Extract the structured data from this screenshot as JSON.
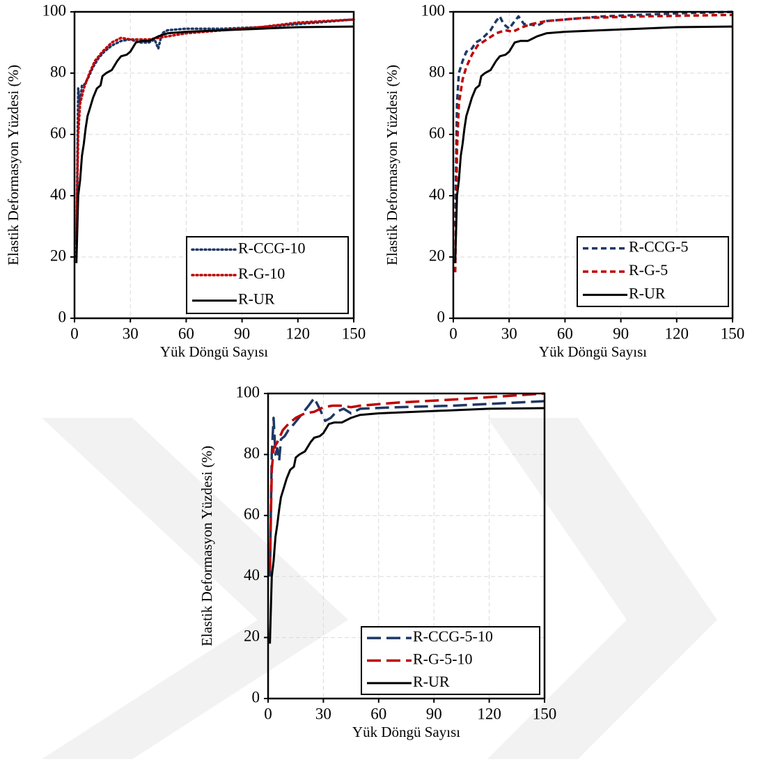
{
  "chart_data": [
    {
      "type": "line",
      "xlabel": "Yük Döngü Sayısı",
      "ylabel": "Elastik Deformasyon Yüzdesi (%)",
      "xlim": [
        0,
        150
      ],
      "ylim": [
        0,
        100
      ],
      "xticks": [
        0,
        30,
        60,
        90,
        120,
        150
      ],
      "yticks": [
        0,
        20,
        40,
        60,
        80,
        100
      ],
      "grid": true,
      "legend": "lower right",
      "series": [
        {
          "name": "R-CCG-10",
          "color": "#1f3864",
          "dash": "dotted",
          "x": [
            1,
            2,
            3,
            4,
            5,
            7,
            10,
            13,
            16,
            20,
            25,
            30,
            35,
            40,
            43,
            45,
            47,
            50,
            60,
            80,
            100,
            120,
            150
          ],
          "values": [
            20,
            75,
            70,
            76,
            76,
            78,
            82,
            85,
            87,
            89,
            90.5,
            91,
            90,
            90,
            91,
            88,
            93,
            94,
            94.5,
            94.5,
            95,
            96,
            97.5
          ]
        },
        {
          "name": "R-G-10",
          "color": "#c00000",
          "dash": "dotted",
          "x": [
            1,
            2,
            3,
            5,
            8,
            11,
            15,
            20,
            25,
            30,
            40,
            50,
            60,
            80,
            100,
            120,
            150
          ],
          "values": [
            25,
            60,
            70,
            75,
            80,
            84,
            87,
            90,
            91.5,
            91,
            91,
            92,
            93,
            94,
            95,
            96.5,
            97.5
          ]
        },
        {
          "name": "R-UR",
          "color": "#000000",
          "dash": "solid",
          "x": [
            1,
            2,
            3,
            4,
            5,
            6,
            7,
            8,
            10,
            12,
            14,
            15,
            17,
            20,
            23,
            25,
            28,
            30,
            33,
            36,
            40,
            45,
            50,
            60,
            80,
            100,
            120,
            150
          ],
          "values": [
            18,
            40,
            45,
            53,
            57,
            62,
            66,
            68,
            72,
            75,
            76,
            79,
            80,
            81,
            84,
            85.5,
            86,
            87,
            90,
            90.5,
            90.5,
            92,
            93,
            93.5,
            94,
            94.5,
            95,
            95.2
          ]
        }
      ]
    },
    {
      "type": "line",
      "xlabel": "Yük Döngü Sayısı",
      "ylabel": "Elastik Deformasyon Yüzdesi (%)",
      "xlim": [
        0,
        150
      ],
      "ylim": [
        0,
        100
      ],
      "xticks": [
        0,
        30,
        60,
        90,
        120,
        150
      ],
      "yticks": [
        0,
        20,
        40,
        60,
        80,
        100
      ],
      "grid": true,
      "legend": "lower right",
      "series": [
        {
          "name": "R-CCG-5",
          "color": "#1f3864",
          "dash": "dashed",
          "x": [
            1,
            2,
            3,
            5,
            7,
            10,
            12,
            15,
            20,
            23,
            25,
            27,
            30,
            33,
            35,
            38,
            40,
            45,
            50,
            60,
            80,
            100,
            120,
            150
          ],
          "values": [
            30,
            70,
            80,
            84,
            87,
            88,
            90,
            91,
            94,
            97,
            98.5,
            96,
            94.5,
            97,
            98.5,
            96,
            96,
            95.5,
            97,
            97.5,
            98.5,
            99,
            99.5,
            100
          ]
        },
        {
          "name": "R-G-5",
          "color": "#c00000",
          "dash": "dashed",
          "x": [
            1,
            2,
            3,
            5,
            7,
            10,
            13,
            18,
            23,
            28,
            32,
            37,
            42,
            50,
            70,
            100,
            150
          ],
          "values": [
            15,
            55,
            70,
            78,
            82,
            86,
            89,
            91,
            93,
            94,
            93.5,
            95,
            96,
            97,
            98,
            98.5,
            99
          ]
        },
        {
          "name": "R-UR",
          "color": "#000000",
          "dash": "solid",
          "x": [
            1,
            2,
            3,
            4,
            5,
            6,
            7,
            8,
            10,
            12,
            14,
            15,
            17,
            20,
            23,
            25,
            28,
            30,
            33,
            36,
            40,
            45,
            50,
            60,
            80,
            100,
            120,
            150
          ],
          "values": [
            18,
            40,
            45,
            53,
            57,
            62,
            66,
            68,
            72,
            75,
            76,
            79,
            80,
            81,
            84,
            85.5,
            86,
            87,
            90,
            90.5,
            90.5,
            92,
            93,
            93.5,
            94,
            94.5,
            95,
            95.2
          ]
        }
      ]
    },
    {
      "type": "line",
      "xlabel": "Yük Döngü Sayısı",
      "ylabel": "Elastik Deformasyon Yüzdesi (%)",
      "xlim": [
        0,
        150
      ],
      "ylim": [
        0,
        100
      ],
      "xticks": [
        0,
        30,
        60,
        90,
        120,
        150
      ],
      "yticks": [
        0,
        20,
        40,
        60,
        80,
        100
      ],
      "grid": true,
      "legend": "lower right",
      "series": [
        {
          "name": "R-CCG-5-10",
          "color": "#1f3864",
          "dash": "longdash",
          "x": [
            1,
            2,
            3,
            4,
            5,
            6,
            7,
            9,
            11,
            14,
            18,
            22,
            25,
            28,
            31,
            34,
            37,
            41,
            45,
            50,
            70,
            100,
            150
          ],
          "values": [
            40,
            80,
            92,
            80,
            82,
            78,
            85,
            86,
            88,
            90,
            93,
            96,
            98.5,
            95,
            91,
            92,
            94,
            95,
            93.5,
            95,
            95.5,
            96,
            97.5
          ]
        },
        {
          "name": "R-G-5-10",
          "color": "#c00000",
          "dash": "longdash",
          "x": [
            1,
            2,
            3,
            5,
            8,
            11,
            15,
            20,
            25,
            30,
            35,
            40,
            45,
            50,
            70,
            100,
            150
          ],
          "values": [
            42,
            75,
            82,
            84,
            88,
            90,
            92,
            93.5,
            94,
            95.5,
            96,
            96,
            95.5,
            96,
            97,
            98,
            100
          ]
        },
        {
          "name": "R-UR",
          "color": "#000000",
          "dash": "solid",
          "x": [
            1,
            2,
            3,
            4,
            5,
            6,
            7,
            8,
            10,
            12,
            14,
            15,
            17,
            20,
            23,
            25,
            28,
            30,
            33,
            36,
            40,
            45,
            50,
            60,
            80,
            100,
            120,
            150
          ],
          "values": [
            18,
            40,
            45,
            53,
            57,
            62,
            66,
            68,
            72,
            75,
            76,
            79,
            80,
            81,
            84,
            85.5,
            86,
            87,
            90,
            90.5,
            90.5,
            92,
            93,
            93.5,
            94,
            94.5,
            95,
            95.2
          ]
        }
      ]
    }
  ]
}
